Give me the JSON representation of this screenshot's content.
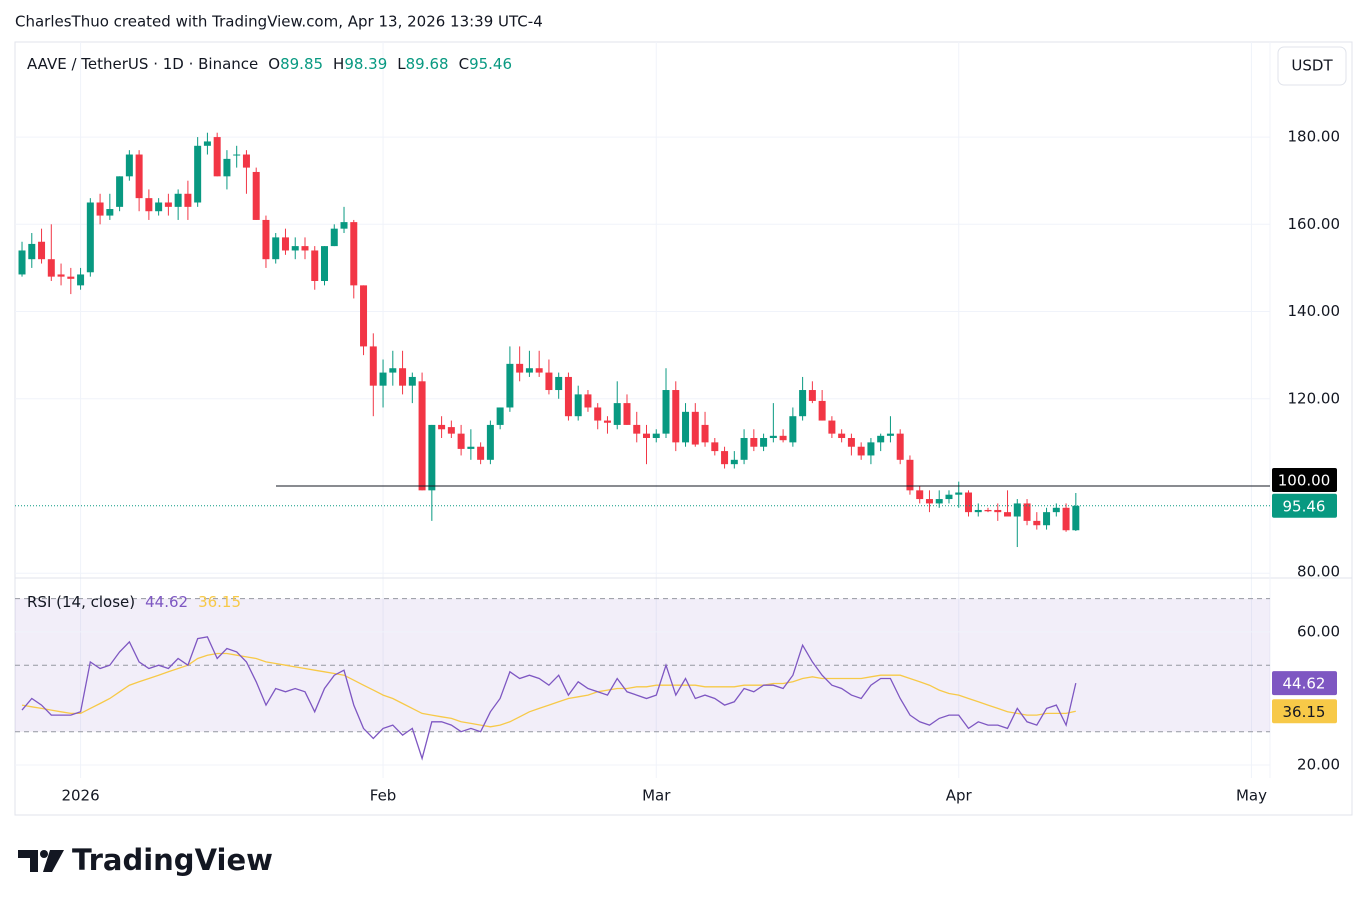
{
  "header": "CharlesThuo created with TradingView.com, Apr 13, 2026 13:39 UTC-4",
  "currency": "USDT",
  "footer": "TradingView",
  "chart_data": [
    {
      "type": "candlestick",
      "title": "AAVE / TetherUS · 1D · Binance",
      "ohlc_labels": [
        "O",
        "H",
        "L",
        "C"
      ],
      "open": [
        148.5,
        152,
        156,
        152,
        148.5,
        148,
        146,
        149,
        165,
        162,
        164,
        171,
        176,
        166,
        163,
        165,
        164,
        167,
        165,
        178,
        180,
        171,
        176,
        176,
        172,
        161,
        152,
        157,
        154,
        155,
        154,
        147,
        155,
        159,
        160.5,
        146,
        132,
        123,
        126,
        127,
        123,
        124,
        99,
        114,
        113.5,
        112,
        108.5,
        109,
        106,
        114,
        118,
        128,
        126,
        127,
        126,
        122,
        125,
        116,
        121,
        118,
        115,
        114,
        119,
        114,
        112,
        111,
        112,
        122,
        110,
        117,
        114,
        110,
        108,
        105,
        106,
        111,
        109,
        111,
        111.5,
        110,
        116,
        122,
        119.5,
        115,
        112,
        111,
        109,
        107,
        110,
        111.5,
        112,
        106,
        99,
        97,
        96,
        97,
        98,
        98.5,
        94,
        94.5,
        94.5,
        94,
        93,
        96,
        92,
        91,
        94,
        95,
        89.85
      ],
      "high": [
        156,
        158,
        159,
        160,
        151,
        150,
        150,
        166,
        167,
        167,
        171,
        177,
        177,
        168,
        166,
        167,
        168,
        170,
        180,
        181,
        181,
        177,
        178,
        177,
        173,
        162,
        158,
        159,
        157,
        157,
        155,
        155,
        160,
        164,
        161,
        146,
        135,
        129,
        131,
        131,
        126,
        126,
        114,
        116,
        115,
        114,
        113,
        110,
        115,
        118,
        132,
        132,
        131,
        131,
        129,
        126,
        126,
        123,
        122,
        119,
        116,
        124,
        121,
        117,
        114,
        113,
        127,
        124,
        119,
        119,
        117,
        111,
        109,
        108,
        113,
        113,
        112,
        119,
        113,
        118,
        125,
        124,
        122,
        116,
        113,
        112,
        110,
        111,
        112,
        116,
        113,
        107,
        100,
        99,
        99,
        99,
        101,
        99,
        96,
        95,
        96,
        99,
        97,
        97,
        94,
        95,
        96,
        96,
        98.39
      ],
      "low": [
        148,
        150,
        151,
        147,
        146,
        144,
        145,
        148,
        160,
        161,
        163,
        170,
        163,
        161,
        162,
        162,
        161,
        161,
        164,
        176,
        171,
        168,
        173,
        167,
        161,
        150,
        151,
        153,
        152,
        152,
        145,
        146,
        155,
        158,
        143,
        130,
        116,
        118,
        123,
        121,
        119,
        99,
        92,
        111,
        111,
        107,
        106,
        105,
        105,
        113,
        117,
        124,
        125,
        125,
        121,
        120,
        115,
        115,
        117,
        113,
        112,
        113,
        114,
        110,
        105,
        110,
        111,
        108,
        109,
        109,
        109,
        107,
        104,
        104,
        105,
        108,
        108,
        110,
        110,
        109,
        115,
        119,
        115,
        111,
        110,
        107,
        106,
        105,
        108,
        110,
        105,
        98,
        96,
        94,
        95,
        96,
        95,
        93,
        93,
        94,
        92,
        93,
        86,
        91,
        90,
        90,
        93,
        89.5,
        89.68
      ],
      "close": [
        154,
        155.5,
        152,
        148,
        148,
        147.5,
        148.5,
        165,
        162,
        163.5,
        171,
        176,
        166,
        163,
        165,
        164,
        167,
        164,
        178,
        179,
        171,
        175,
        176,
        173,
        161,
        152,
        157,
        154,
        155,
        154,
        147,
        155,
        159,
        160.5,
        146,
        132,
        123,
        126,
        127,
        123,
        125,
        99,
        114,
        113,
        112,
        108.5,
        109,
        106,
        114,
        118,
        128,
        126,
        127,
        126,
        122,
        125,
        116,
        121,
        118,
        115,
        114.5,
        119,
        114,
        112,
        111,
        112,
        122,
        110,
        117,
        109.5,
        110,
        108,
        105,
        106,
        111,
        109,
        111,
        111.5,
        110.5,
        116,
        122,
        119.5,
        115,
        112,
        111,
        109,
        107,
        110,
        111.5,
        112,
        106,
        99,
        97,
        96,
        97,
        98,
        98.5,
        94,
        94.5,
        94.2,
        94,
        93,
        96,
        92,
        91,
        94,
        95,
        89.85,
        95.46
      ],
      "up_color": "#089981",
      "down_color": "#f23645",
      "xlim": [
        -0.72,
        127.9
      ],
      "xticks": [
        {
          "value": 6,
          "label": "2026"
        },
        {
          "value": 37,
          "label": "Feb"
        },
        {
          "value": 65,
          "label": "Mar"
        },
        {
          "value": 96,
          "label": "Apr"
        },
        {
          "value": 126,
          "label": "May"
        }
      ],
      "ylim": [
        78.9,
        201.8
      ],
      "yticks": [
        {
          "value": 80,
          "label": "80.00"
        },
        {
          "value": 120,
          "label": "120.00"
        },
        {
          "value": 140,
          "label": "140.00"
        },
        {
          "value": 160,
          "label": "160.00"
        },
        {
          "value": 180,
          "label": "180.00"
        }
      ],
      "hline": {
        "value": 100,
        "label": "100.00"
      },
      "grid": true
    },
    {
      "type": "line",
      "title": "RSI (14, close)",
      "series": [
        {
          "color": "#7e57c2",
          "values": [
            36.5,
            40,
            38,
            35,
            35,
            35,
            36,
            51,
            49,
            50,
            54,
            57,
            51,
            49,
            50,
            49,
            52,
            50,
            58,
            58.5,
            52,
            55,
            54,
            51,
            45,
            38,
            43,
            42,
            43,
            42,
            36,
            43,
            47,
            48.5,
            38,
            31,
            28,
            31,
            32,
            29,
            31,
            22,
            33,
            33,
            32,
            30,
            31,
            30,
            36,
            40,
            48,
            46,
            47,
            46,
            44,
            47,
            41,
            45,
            43,
            42,
            41,
            46,
            42,
            41,
            40,
            41,
            50,
            41,
            46,
            40,
            41,
            40,
            38,
            39,
            43,
            42,
            44,
            44,
            43,
            47,
            56,
            51,
            47,
            44,
            43,
            41,
            40,
            44,
            46,
            46,
            40,
            35,
            33,
            32,
            34,
            35,
            35,
            31,
            33,
            32,
            32,
            31,
            37,
            33,
            32,
            37,
            38,
            32,
            44.62
          ]
        },
        {
          "color": "#f7c948",
          "values": [
            38,
            37.5,
            37,
            36.5,
            36,
            35.5,
            35.5,
            37,
            38.5,
            40,
            42,
            44,
            45,
            46,
            47,
            48,
            49,
            50,
            52,
            53,
            53.5,
            53.5,
            53,
            52.5,
            52,
            51,
            50.5,
            50,
            49.5,
            49,
            48.5,
            48,
            47.5,
            47,
            45.5,
            44,
            42.5,
            41,
            40,
            38.5,
            37,
            35.5,
            35,
            34.5,
            34,
            33,
            32.5,
            32,
            31.5,
            32,
            33,
            34.5,
            36,
            37,
            38,
            39,
            40,
            40.5,
            41,
            42,
            42.5,
            43,
            43,
            43.5,
            43.5,
            44,
            44,
            44,
            44,
            44,
            43.5,
            43.5,
            43.5,
            43.5,
            44,
            44,
            44,
            44.5,
            44.5,
            45,
            46,
            46.5,
            46,
            46,
            46,
            46,
            46,
            46.5,
            47,
            47,
            47,
            46,
            45,
            44,
            42.5,
            41.5,
            41,
            40,
            39,
            38,
            37,
            36,
            35.5,
            35,
            35,
            35.5,
            35.5,
            35.5,
            36.15
          ]
        }
      ],
      "ylim": [
        16.1,
        76.2
      ],
      "yticks": [
        {
          "value": 20,
          "label": "20.00"
        },
        {
          "value": 60,
          "label": "60.00"
        }
      ],
      "band": [
        30,
        70
      ],
      "midline": 50
    }
  ]
}
